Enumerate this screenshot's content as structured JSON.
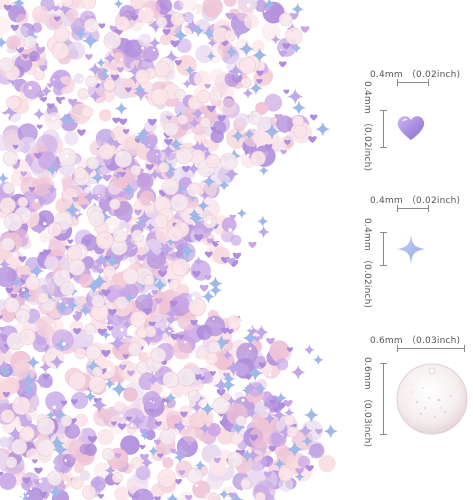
{
  "heart": {
    "width": "0.4mm",
    "width_inch": "（0.02inch)",
    "height": "0.4mm",
    "height_inch": "（0.02inch)",
    "color": "#a98ee0"
  },
  "star": {
    "width": "0.4mm",
    "width_inch": "（0.02inch)",
    "height": "0.4mm",
    "height_inch": "（0.02inch)",
    "color": "#9fb8e8"
  },
  "circle": {
    "width": "0.6mm",
    "width_inch": "（0.03inch)",
    "height": "0.6mm",
    "height_inch": "（0.03inch)",
    "color": "#f6eeee"
  },
  "glitter_colors": [
    "#f7d6dd",
    "#efc2d6",
    "#c9a6e6",
    "#b08ddc",
    "#e8d8ef",
    "#fbe6ea",
    "#9fb8e8"
  ]
}
